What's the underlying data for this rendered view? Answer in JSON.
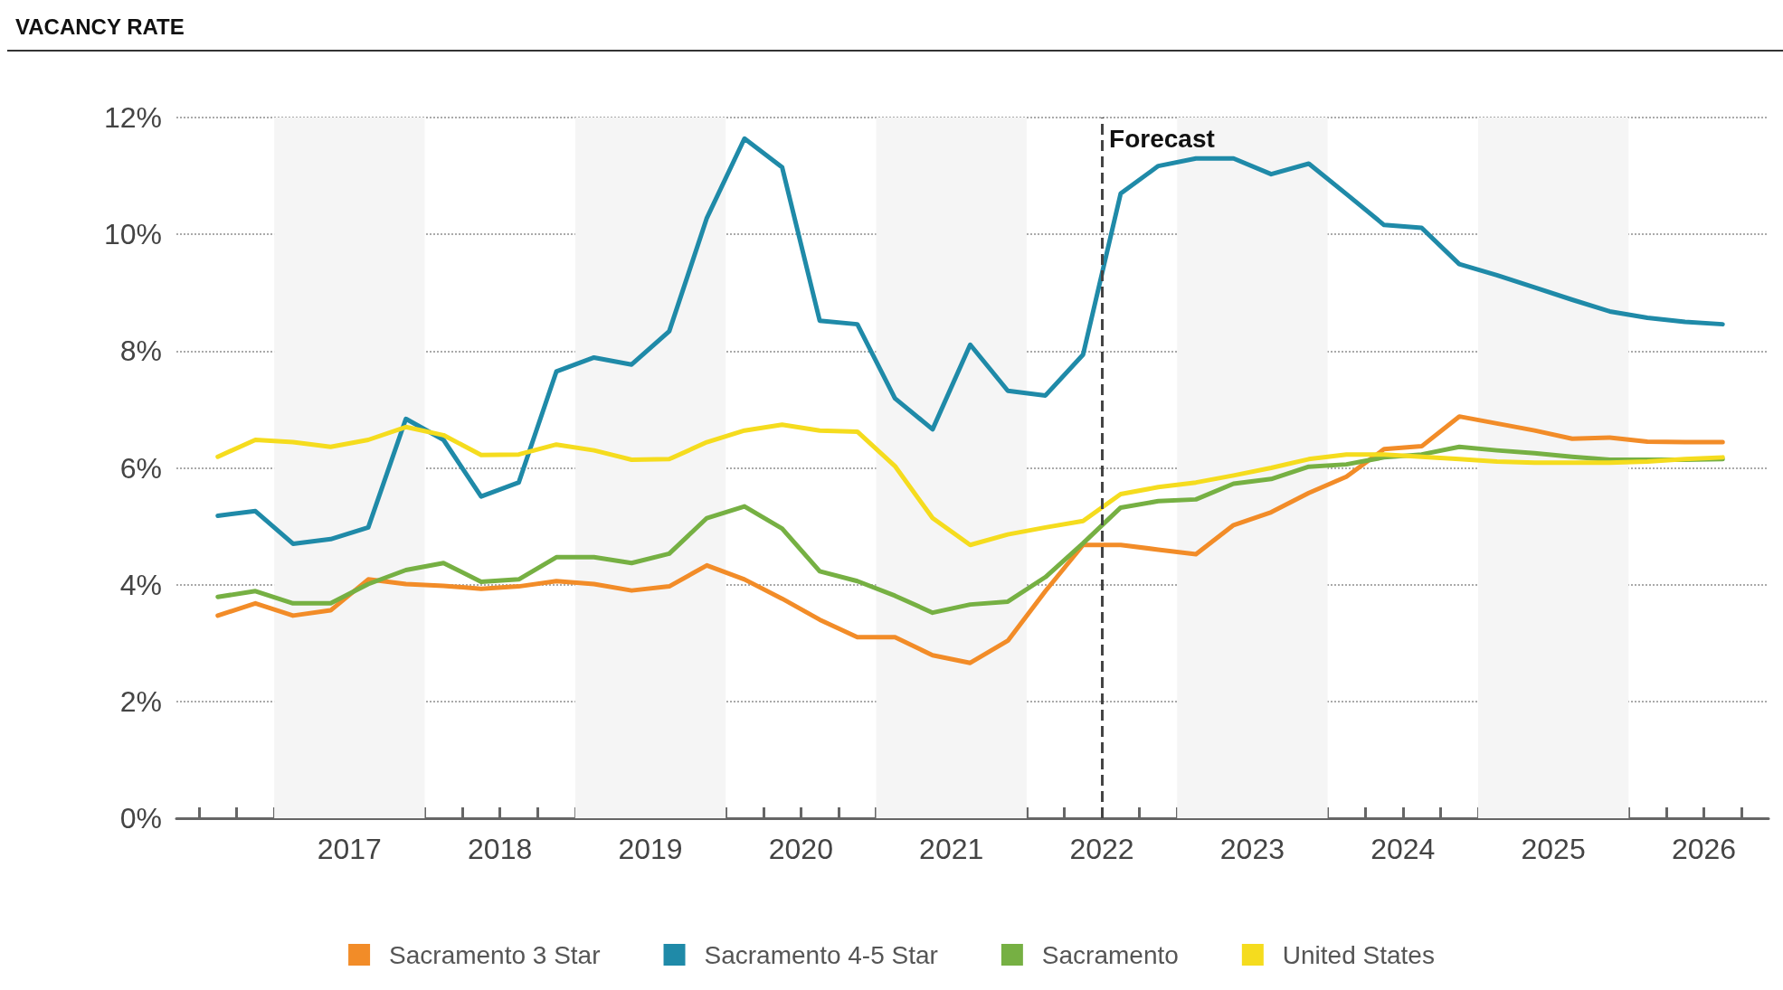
{
  "chart_data": {
    "type": "line",
    "title": "VACANCY RATE",
    "x": [
      2016.625,
      2016.875,
      2017.125,
      2017.375,
      2017.625,
      2017.875,
      2018.125,
      2018.375,
      2018.625,
      2018.875,
      2019.125,
      2019.375,
      2019.625,
      2019.875,
      2020.125,
      2020.375,
      2020.625,
      2020.875,
      2021.125,
      2021.375,
      2021.625,
      2021.875,
      2022.125,
      2022.375,
      2022.625,
      2022.875,
      2023.125,
      2023.375,
      2023.625,
      2023.875,
      2024.125,
      2024.375,
      2024.625,
      2024.875,
      2025.125,
      2025.375,
      2025.625,
      2025.875,
      2026.125,
      2026.375,
      2026.625
    ],
    "series": [
      {
        "name": "Sacramento 3 Star",
        "color": "#f28c28",
        "values": [
          3.47,
          3.68,
          3.47,
          3.56,
          4.09,
          4.01,
          3.98,
          3.93,
          3.97,
          4.06,
          4.01,
          3.9,
          3.97,
          4.33,
          4.09,
          3.76,
          3.4,
          3.1,
          3.1,
          2.79,
          2.66,
          3.04,
          3.89,
          4.68,
          4.68,
          4.6,
          4.52,
          5.02,
          5.24,
          5.57,
          5.85,
          6.32,
          6.37,
          6.88,
          6.76,
          6.64,
          6.5,
          6.52,
          6.45,
          6.44,
          6.44
        ]
      },
      {
        "name": "Sacramento 4-5 Star",
        "color": "#1f8aa8",
        "values": [
          5.18,
          5.26,
          4.7,
          4.78,
          4.98,
          6.84,
          6.48,
          5.51,
          5.75,
          7.65,
          7.89,
          7.77,
          8.34,
          10.28,
          11.64,
          11.15,
          8.52,
          8.46,
          7.19,
          6.66,
          8.11,
          7.32,
          7.24,
          7.94,
          10.7,
          11.17,
          11.3,
          11.3,
          11.03,
          11.21,
          10.69,
          10.16,
          10.11,
          9.49,
          9.3,
          9.09,
          8.88,
          8.68,
          8.57,
          8.5,
          8.46
        ]
      },
      {
        "name": "Sacramento",
        "color": "#76b043",
        "values": [
          3.79,
          3.89,
          3.68,
          3.68,
          4.01,
          4.25,
          4.37,
          4.05,
          4.09,
          4.47,
          4.47,
          4.37,
          4.53,
          5.14,
          5.34,
          4.96,
          4.23,
          4.06,
          3.81,
          3.52,
          3.66,
          3.71,
          4.13,
          4.71,
          5.32,
          5.43,
          5.46,
          5.73,
          5.81,
          6.02,
          6.06,
          6.18,
          6.23,
          6.36,
          6.3,
          6.25,
          6.19,
          6.14,
          6.14,
          6.14,
          6.15
        ]
      },
      {
        "name": "United States",
        "color": "#f5dc1e",
        "values": [
          6.19,
          6.48,
          6.44,
          6.36,
          6.48,
          6.7,
          6.56,
          6.22,
          6.23,
          6.4,
          6.3,
          6.14,
          6.15,
          6.44,
          6.64,
          6.74,
          6.64,
          6.62,
          6.03,
          5.14,
          4.68,
          4.86,
          4.98,
          5.09,
          5.55,
          5.67,
          5.75,
          5.87,
          6.0,
          6.15,
          6.23,
          6.23,
          6.19,
          6.15,
          6.11,
          6.09,
          6.09,
          6.09,
          6.11,
          6.15,
          6.18
        ]
      }
    ],
    "xlim": [
      2016.35,
      2026.93
    ],
    "xticks": [
      {
        "value": 2016.5,
        "label": null
      },
      {
        "value": 2016.75,
        "label": null
      },
      {
        "value": 2017,
        "label": null
      },
      {
        "value": 2017.25,
        "label": null
      },
      {
        "value": 2017.5,
        "label": "2017"
      },
      {
        "value": 2017.75,
        "label": null
      },
      {
        "value": 2018,
        "label": null
      },
      {
        "value": 2018.25,
        "label": null
      },
      {
        "value": 2018.5,
        "label": "2018"
      },
      {
        "value": 2018.75,
        "label": null
      },
      {
        "value": 2019,
        "label": null
      },
      {
        "value": 2019.25,
        "label": null
      },
      {
        "value": 2019.5,
        "label": "2019"
      },
      {
        "value": 2019.75,
        "label": null
      },
      {
        "value": 2020,
        "label": null
      },
      {
        "value": 2020.25,
        "label": null
      },
      {
        "value": 2020.5,
        "label": "2020"
      },
      {
        "value": 2020.75,
        "label": null
      },
      {
        "value": 2021,
        "label": null
      },
      {
        "value": 2021.25,
        "label": null
      },
      {
        "value": 2021.5,
        "label": "2021"
      },
      {
        "value": 2021.75,
        "label": null
      },
      {
        "value": 2022,
        "label": null
      },
      {
        "value": 2022.25,
        "label": null
      },
      {
        "value": 2022.5,
        "label": "2022"
      },
      {
        "value": 2022.75,
        "label": null
      },
      {
        "value": 2023,
        "label": null
      },
      {
        "value": 2023.25,
        "label": null
      },
      {
        "value": 2023.5,
        "label": "2023"
      },
      {
        "value": 2023.75,
        "label": null
      },
      {
        "value": 2024,
        "label": null
      },
      {
        "value": 2024.25,
        "label": null
      },
      {
        "value": 2024.5,
        "label": "2024"
      },
      {
        "value": 2024.75,
        "label": null
      },
      {
        "value": 2025,
        "label": null
      },
      {
        "value": 2025.25,
        "label": null
      },
      {
        "value": 2025.5,
        "label": "2025"
      },
      {
        "value": 2025.75,
        "label": null
      },
      {
        "value": 2026,
        "label": null
      },
      {
        "value": 2026.25,
        "label": null
      },
      {
        "value": 2026.5,
        "label": "2026"
      },
      {
        "value": 2026.75,
        "label": null
      }
    ],
    "ylim": [
      0,
      12
    ],
    "yticks": [
      {
        "value": 0,
        "label": "0%"
      },
      {
        "value": 2,
        "label": "2%"
      },
      {
        "value": 4,
        "label": "4%"
      },
      {
        "value": 6,
        "label": "6%"
      },
      {
        "value": 8,
        "label": "8%"
      },
      {
        "value": 10,
        "label": "10%"
      },
      {
        "value": 12,
        "label": "12%"
      }
    ],
    "bands": [
      {
        "axis": "x",
        "from": 2017,
        "to": 2018,
        "color": "#f5f5f5"
      },
      {
        "axis": "x",
        "from": 2019,
        "to": 2020,
        "color": "#f5f5f5"
      },
      {
        "axis": "x",
        "from": 2021,
        "to": 2022,
        "color": "#f5f5f5"
      },
      {
        "axis": "x",
        "from": 2023,
        "to": 2024,
        "color": "#f5f5f5"
      },
      {
        "axis": "x",
        "from": 2025,
        "to": 2026,
        "color": "#f5f5f5"
      }
    ],
    "ref_lines": [
      {
        "axis": "x",
        "value": 2022.5,
        "label": "Forecast",
        "color": "#444444",
        "line_style": "dashed"
      }
    ],
    "grid": "y",
    "legend": "bottom",
    "marker": "none",
    "line_style": "solid"
  }
}
